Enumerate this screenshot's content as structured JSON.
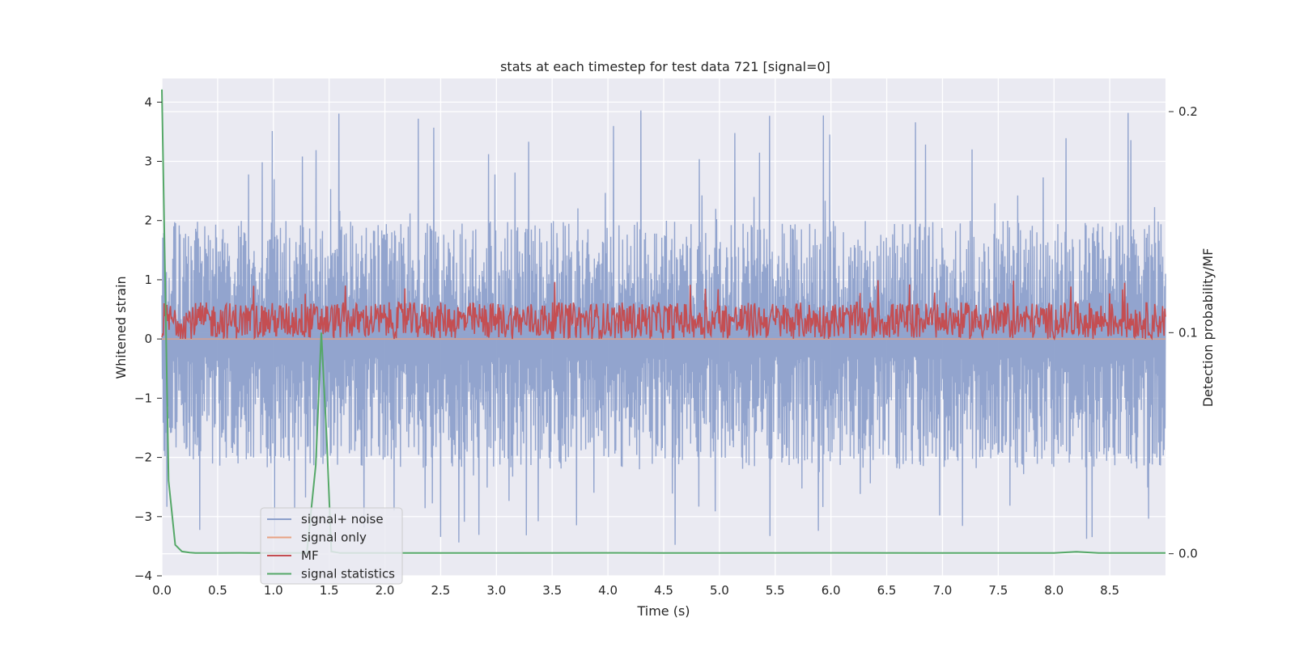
{
  "chart_data": {
    "type": "line",
    "title": "stats at each timestep for test data 721 [signal=0]",
    "xlabel": "Time (s)",
    "ylabel": "Whitened strain",
    "ylabel_right": "Detection probability/MF",
    "xlim": [
      0.0,
      9.0
    ],
    "ylim": [
      -4.0,
      4.4
    ],
    "ylim_right": [
      -0.01,
      0.215
    ],
    "x_ticks": [
      "0.0",
      "0.5",
      "1.0",
      "1.5",
      "2.0",
      "2.5",
      "3.0",
      "3.5",
      "4.0",
      "4.5",
      "5.0",
      "5.5",
      "6.0",
      "6.5",
      "7.0",
      "7.5",
      "8.0",
      "8.5"
    ],
    "y_ticks": [
      "4",
      "3",
      "2",
      "1",
      "0",
      "−1",
      "−2",
      "−3",
      "−4"
    ],
    "y_ticks_right": [
      "0.2",
      "0.1",
      "0.0"
    ],
    "legend_position": "lower-left",
    "grid": true,
    "series": [
      {
        "name": "signal+ noise",
        "color": "#8da0cb",
        "axis": "left",
        "style": "noise",
        "envelope_upper": 2.0,
        "envelope_lower": -2.2,
        "peak_max": 4.0,
        "peak_min": -3.6
      },
      {
        "name": "signal only",
        "color": "#e8a183",
        "axis": "left",
        "values": "flat at 0"
      },
      {
        "name": "MF",
        "color": "#c44e52",
        "axis": "left",
        "style": "noise",
        "mean": 0.3,
        "range": [
          0.0,
          1.0
        ]
      },
      {
        "name": "signal statistics",
        "color": "#55a868",
        "axis": "right",
        "x": [
          0.0,
          0.06,
          0.12,
          0.18,
          0.25,
          0.3,
          0.5,
          0.7,
          0.8,
          1.0,
          1.3,
          1.38,
          1.43,
          1.48,
          1.52,
          1.6,
          2.0,
          3.0,
          4.0,
          4.5,
          5.0,
          6.0,
          7.0,
          8.0,
          8.2,
          8.4,
          9.0
        ],
        "y": [
          0.21,
          0.033,
          0.004,
          0.001,
          0.0005,
          0.0003,
          0.0003,
          0.0004,
          0.0003,
          0.0003,
          0.0003,
          0.04,
          0.1,
          0.05,
          0.001,
          0.0003,
          0.0003,
          0.0003,
          0.0004,
          0.0003,
          0.0003,
          0.0004,
          0.0003,
          0.0003,
          0.0009,
          0.0003,
          0.0003
        ]
      }
    ]
  }
}
